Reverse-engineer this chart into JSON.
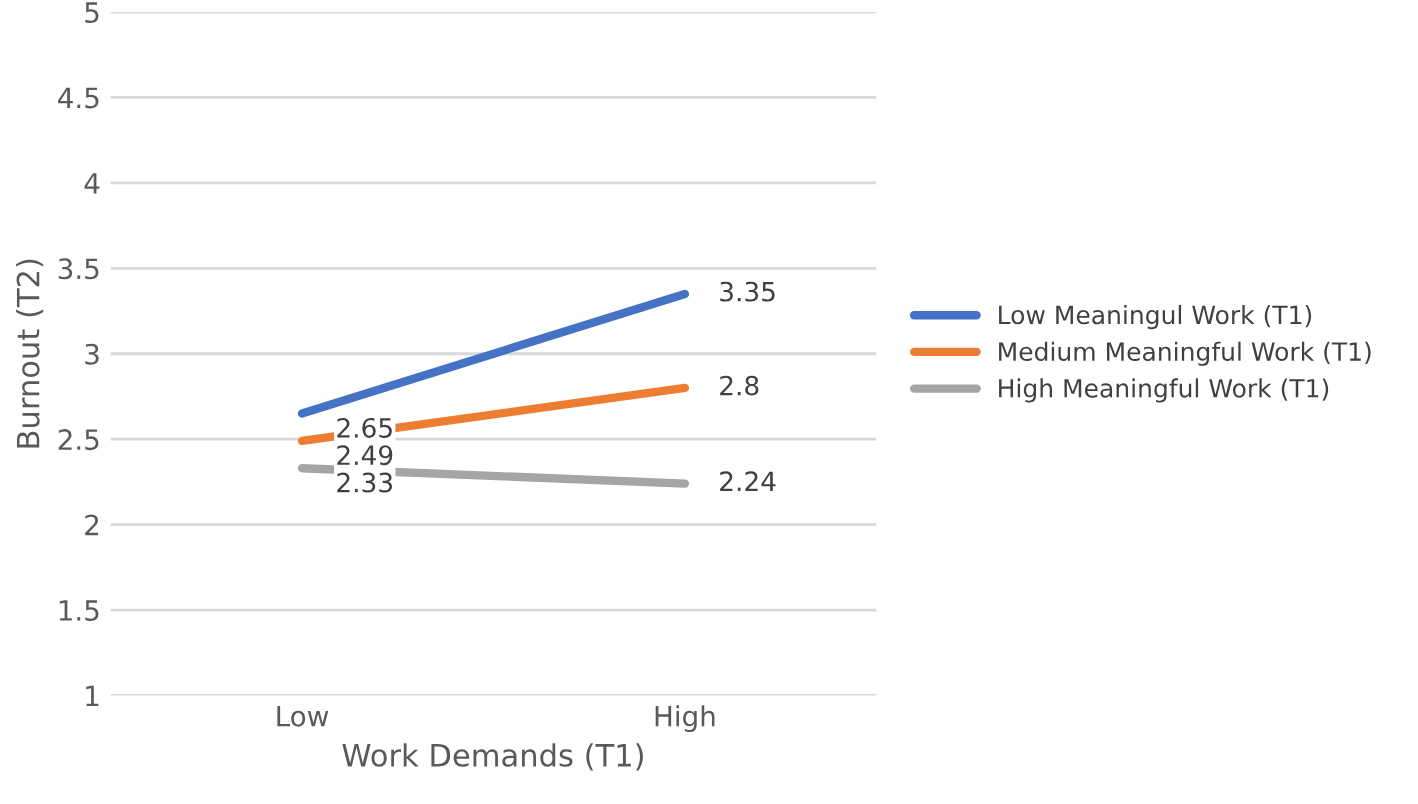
{
  "chart_data": {
    "type": "line",
    "xlabel": "Work Demands (T1)",
    "ylabel": "Burnout (T2)",
    "categories": [
      "Low",
      "High"
    ],
    "series": [
      {
        "name": "Low Meaningul Work (T1)",
        "color": "#4472c4",
        "values": [
          2.65,
          3.35
        ]
      },
      {
        "name": "Medium Meaningful Work (T1)",
        "color": "#ed7d31",
        "values": [
          2.49,
          2.8
        ]
      },
      {
        "name": "High Meaningful Work (T1)",
        "color": "#a5a5a5",
        "values": [
          2.33,
          2.24
        ]
      }
    ],
    "ylim": [
      1,
      5
    ],
    "yticks": [
      1,
      1.5,
      2,
      2.5,
      3,
      3.5,
      4,
      4.5,
      5
    ],
    "grid": "y",
    "legend": "right",
    "data_labels": true,
    "marker": "none",
    "line_style": "solid"
  }
}
